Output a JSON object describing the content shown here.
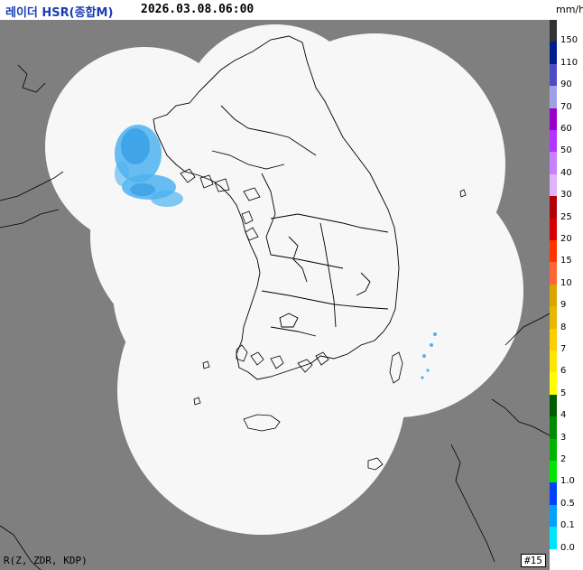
{
  "header": {
    "title": "레이더 HSR(종합M)",
    "timestamp": "2026.03.08.06:00",
    "unit": "mm/h"
  },
  "footer": {
    "variables": "R(Z, ZDR, KDP)",
    "frame": "#15"
  },
  "colors": {
    "no_data": "#7f7f7f",
    "coverage": "#f7f7f7",
    "coastline": "#000000",
    "echo_light": "#4db3f0",
    "echo_medium": "#1f8fe0"
  },
  "legend": {
    "levels": [
      {
        "label": "150",
        "color": "#333333"
      },
      {
        "label": "110",
        "color": "#001f8c"
      },
      {
        "label": "90",
        "color": "#4c4cc4"
      },
      {
        "label": "70",
        "color": "#a0a0e6"
      },
      {
        "label": "60",
        "color": "#9900cc"
      },
      {
        "label": "50",
        "color": "#b333ff"
      },
      {
        "label": "40",
        "color": "#c880ff"
      },
      {
        "label": "30",
        "color": "#e0b3ff"
      },
      {
        "label": "25",
        "color": "#b30000"
      },
      {
        "label": "20",
        "color": "#d60000"
      },
      {
        "label": "15",
        "color": "#ff3300"
      },
      {
        "label": "10",
        "color": "#ff6633"
      },
      {
        "label": "9",
        "color": "#d9a600"
      },
      {
        "label": "8",
        "color": "#e6b800"
      },
      {
        "label": "7",
        "color": "#ffcc00"
      },
      {
        "label": "6",
        "color": "#ffe600"
      },
      {
        "label": "5",
        "color": "#ffff00"
      },
      {
        "label": "4",
        "color": "#005c00"
      },
      {
        "label": "3",
        "color": "#008c00"
      },
      {
        "label": "2",
        "color": "#00b300"
      },
      {
        "label": "1.0",
        "color": "#00e600"
      },
      {
        "label": "0.5",
        "color": "#0040ff"
      },
      {
        "label": "0.1",
        "color": "#00a0ff"
      },
      {
        "label": "0.0",
        "color": "#00e5ff"
      }
    ]
  }
}
